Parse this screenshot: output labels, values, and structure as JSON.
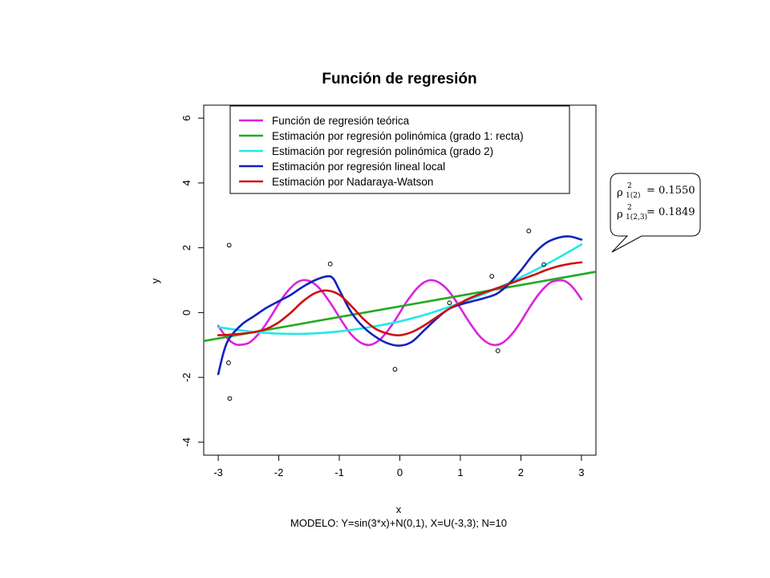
{
  "chart_data": {
    "type": "line",
    "title": "Función de regresión",
    "xlabel": "x",
    "ylabel": "y",
    "subtitle": "MODELO: Y=sin(3*x)+N(0,1), X=U(-3,3);  N=10",
    "xlim": [
      -3,
      3
    ],
    "ylim": [
      -4,
      6
    ],
    "x_ticks": [
      -3,
      -2,
      -1,
      0,
      1,
      2,
      3
    ],
    "y_ticks": [
      -4,
      -2,
      0,
      2,
      4,
      6
    ],
    "x_tick_labels": [
      "-3",
      "-2",
      "-1",
      "0",
      "1",
      "2",
      "3"
    ],
    "y_tick_labels": [
      "-4",
      "-2",
      "0",
      "2",
      "4",
      "6"
    ],
    "legend_position": "top",
    "series": [
      {
        "name": "Función de regresión teórica",
        "color": "#dd22dd",
        "x": [
          -3.0,
          -2.9,
          -2.8,
          -2.7,
          -2.6,
          -2.5,
          -2.4,
          -2.3,
          -2.2,
          -2.1,
          -2.0,
          -1.9,
          -1.8,
          -1.7,
          -1.6,
          -1.5,
          -1.4,
          -1.3,
          -1.2,
          -1.1,
          -1.0,
          -0.9,
          -0.8,
          -0.7,
          -0.6,
          -0.5,
          -0.4,
          -0.3,
          -0.2,
          -0.1,
          0.0,
          0.1,
          0.2,
          0.3,
          0.4,
          0.5,
          0.6,
          0.7,
          0.8,
          0.9,
          1.0,
          1.1,
          1.2,
          1.3,
          1.4,
          1.5,
          1.6,
          1.7,
          1.8,
          1.9,
          2.0,
          2.1,
          2.2,
          2.3,
          2.4,
          2.5,
          2.6,
          2.7,
          2.8,
          2.9,
          3.0
        ],
        "y": [
          -0.41,
          -0.68,
          -0.88,
          -0.99,
          -0.99,
          -0.94,
          -0.79,
          -0.58,
          -0.32,
          -0.03,
          0.28,
          0.55,
          0.77,
          0.93,
          1.0,
          0.98,
          0.87,
          0.69,
          0.44,
          0.16,
          -0.14,
          -0.43,
          -0.68,
          -0.86,
          -0.97,
          -1.0,
          -0.93,
          -0.78,
          -0.56,
          -0.3,
          0.0,
          0.3,
          0.56,
          0.78,
          0.93,
          1.0,
          0.97,
          0.86,
          0.68,
          0.43,
          0.14,
          -0.16,
          -0.44,
          -0.69,
          -0.87,
          -0.98,
          -1.0,
          -0.93,
          -0.77,
          -0.55,
          -0.28,
          0.03,
          0.32,
          0.58,
          0.79,
          0.94,
          0.99,
          0.99,
          0.88,
          0.68,
          0.41
        ]
      },
      {
        "name": "Estimación por regresión polinómica (grado 1: recta)",
        "color": "#22aa22",
        "x": [
          -3.25,
          3.3
        ],
        "y": [
          -0.88,
          1.28
        ]
      },
      {
        "name": "Estimación por regresión polinómica (grado 2)",
        "color": "#22e8e8",
        "x": [
          -3.0,
          -2.5,
          -2.0,
          -1.5,
          -1.0,
          -0.5,
          0.0,
          0.5,
          1.0,
          1.5,
          2.0,
          2.5,
          3.0
        ],
        "y": [
          -0.45,
          -0.58,
          -0.65,
          -0.65,
          -0.58,
          -0.45,
          -0.27,
          -0.02,
          0.3,
          0.66,
          1.09,
          1.57,
          2.1
        ]
      },
      {
        "name": "Estimación por regresión lineal local",
        "color": "#1122bb",
        "x": [
          -3.0,
          -2.9,
          -2.8,
          -2.6,
          -2.4,
          -2.2,
          -2.0,
          -1.8,
          -1.6,
          -1.4,
          -1.2,
          -1.1,
          -1.0,
          -0.8,
          -0.6,
          -0.4,
          -0.2,
          0.0,
          0.2,
          0.4,
          0.6,
          0.8,
          1.0,
          1.2,
          1.4,
          1.6,
          1.8,
          2.0,
          2.2,
          2.4,
          2.6,
          2.8,
          3.0
        ],
        "y": [
          -1.9,
          -1.15,
          -0.75,
          -0.35,
          -0.1,
          0.15,
          0.35,
          0.55,
          0.8,
          1.0,
          1.12,
          1.05,
          0.7,
          0.0,
          -0.45,
          -0.75,
          -0.95,
          -1.02,
          -0.9,
          -0.55,
          -0.2,
          0.1,
          0.25,
          0.35,
          0.45,
          0.58,
          0.88,
          1.3,
          1.78,
          2.13,
          2.3,
          2.35,
          2.25
        ]
      },
      {
        "name": "Estimación por Nadaraya-Watson",
        "color": "#cc1111",
        "x": [
          -3.0,
          -2.8,
          -2.6,
          -2.4,
          -2.2,
          -2.0,
          -1.8,
          -1.6,
          -1.4,
          -1.2,
          -1.0,
          -0.8,
          -0.6,
          -0.4,
          -0.2,
          0.0,
          0.2,
          0.4,
          0.6,
          0.8,
          1.0,
          1.2,
          1.4,
          1.6,
          1.8,
          2.0,
          2.2,
          2.4,
          2.6,
          2.8,
          3.0
        ],
        "y": [
          -0.7,
          -0.68,
          -0.65,
          -0.6,
          -0.5,
          -0.3,
          0.0,
          0.35,
          0.6,
          0.68,
          0.55,
          0.2,
          -0.2,
          -0.5,
          -0.65,
          -0.7,
          -0.6,
          -0.4,
          -0.15,
          0.1,
          0.3,
          0.48,
          0.62,
          0.75,
          0.88,
          1.02,
          1.15,
          1.3,
          1.42,
          1.5,
          1.55
        ]
      }
    ],
    "points": {
      "x": [
        -2.82,
        -2.83,
        -2.81,
        -1.15,
        -0.08,
        0.82,
        1.52,
        1.62,
        2.13,
        2.38
      ],
      "y": [
        2.08,
        -1.55,
        -2.65,
        1.5,
        -1.75,
        0.3,
        1.12,
        -1.18,
        2.52,
        1.48
      ]
    }
  },
  "callout": {
    "line1_rho": "ρ",
    "line1_sup": "2",
    "line1_sub": "1(2)",
    "line1_value": "= 0.1550",
    "line2_rho": "ρ",
    "line2_sup": "2",
    "line2_sub": "1(2,3)",
    "line2_value": "= 0.1849"
  }
}
